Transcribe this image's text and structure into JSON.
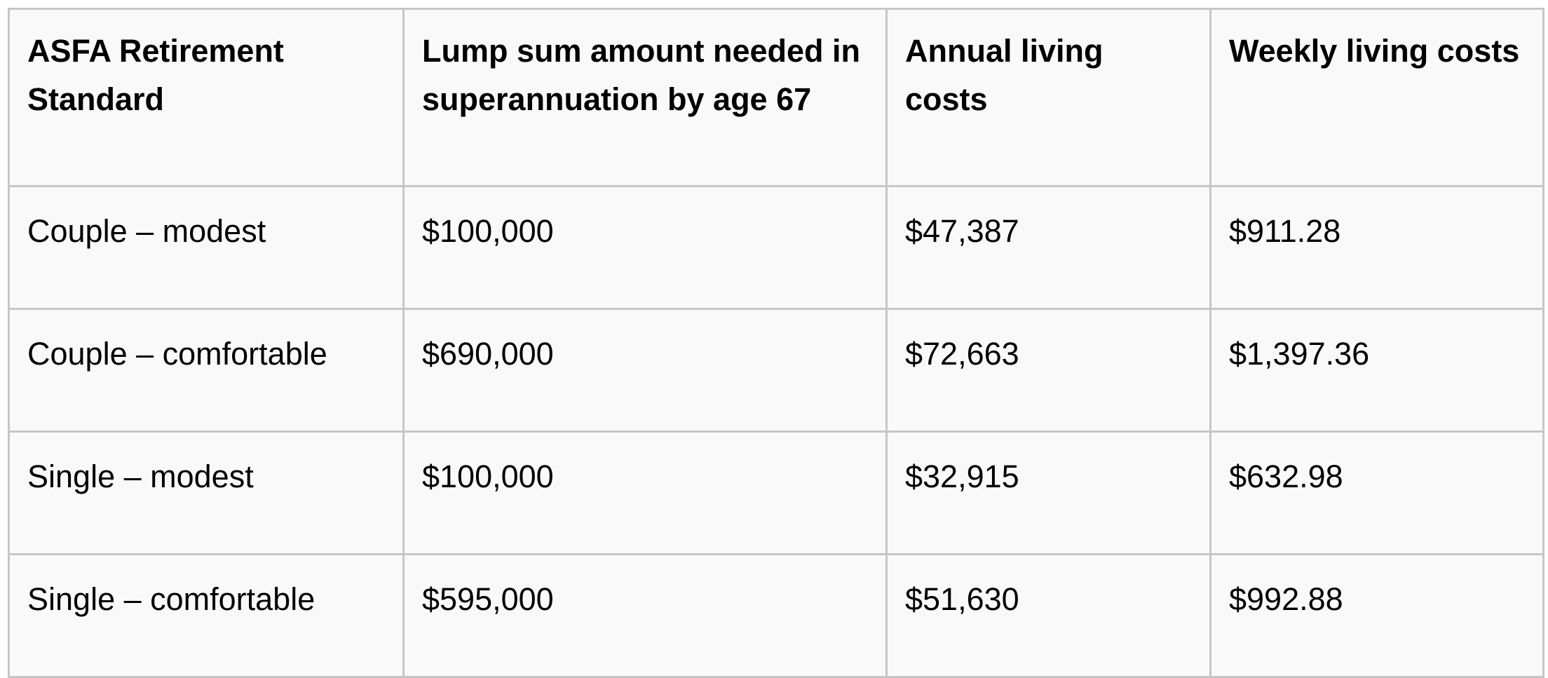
{
  "table": {
    "header": [
      "ASFA Retirement Standard",
      "Lump sum amount needed in superannuation by age 67",
      "Annual living costs",
      "Weekly living costs"
    ],
    "rows": [
      [
        "Couple – modest",
        "$100,000",
        "$47,387",
        "$911.28"
      ],
      [
        "Couple – comfortable",
        "$690,000",
        "$72,663",
        "$1,397.36"
      ],
      [
        "Single – modest",
        "$100,000",
        "$32,915",
        "$632.98"
      ],
      [
        "Single – comfortable",
        "$595,000",
        "$51,630",
        "$992.88"
      ]
    ]
  }
}
